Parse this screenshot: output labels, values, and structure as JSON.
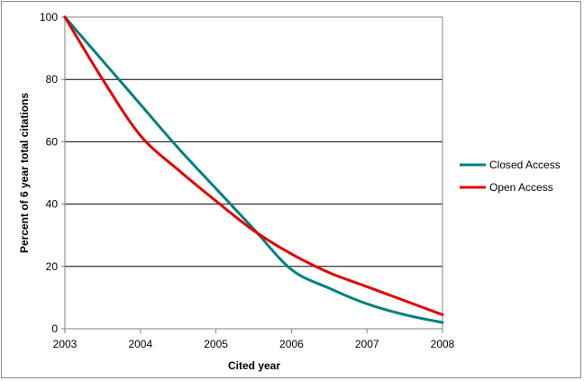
{
  "chart_data": {
    "type": "line",
    "title": "",
    "xlabel": "Cited year",
    "ylabel": "Percent of 6 year total citations",
    "x": [
      2003,
      2003.5,
      2004,
      2004.5,
      2005,
      2005.5,
      2006,
      2006.5,
      2007,
      2007.5,
      2008
    ],
    "xticks": [
      "2003",
      "2004",
      "2005",
      "2006",
      "2007",
      "2008"
    ],
    "yticks": [
      "0",
      "20",
      "40",
      "60",
      "80",
      "100"
    ],
    "xlim": [
      2003,
      2008
    ],
    "ylim": [
      0,
      100
    ],
    "grid": "horizontal major",
    "legend_position": "right",
    "series": [
      {
        "name": "Closed Access",
        "color": "#008080",
        "values": [
          100,
          86,
          72,
          58,
          45,
          32,
          19,
          13,
          8,
          4.5,
          2
        ]
      },
      {
        "name": "Open Access",
        "color": "#e60000",
        "values": [
          100,
          80,
          62,
          51,
          41,
          31.5,
          24,
          18,
          13.5,
          9,
          4.5
        ]
      }
    ]
  }
}
